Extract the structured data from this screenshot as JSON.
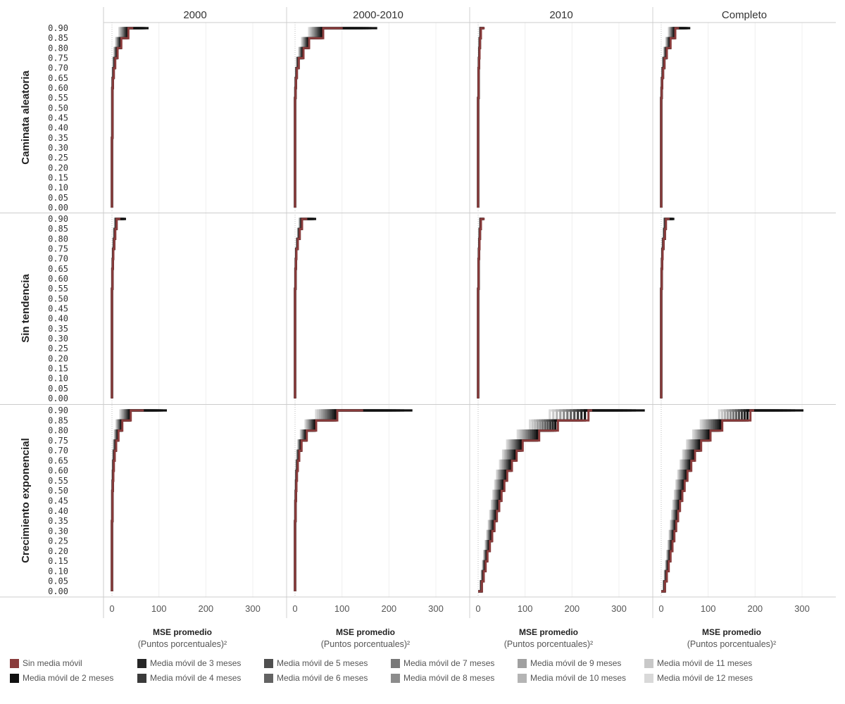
{
  "chart_data": {
    "type": "line",
    "columns": [
      "2000",
      "2000-2010",
      "2010",
      "Completo"
    ],
    "rows": [
      "Caminata aleatoria",
      "Sin tendencia",
      "Crecimiento exponencial"
    ],
    "y_ticks": [
      "0.00",
      "0.05",
      "0.10",
      "0.15",
      "0.20",
      "0.25",
      "0.30",
      "0.35",
      "0.40",
      "0.45",
      "0.50",
      "0.55",
      "0.60",
      "0.65",
      "0.70",
      "0.75",
      "0.80",
      "0.85",
      "0.90"
    ],
    "ylim": [
      0,
      0.9
    ],
    "x_ticks": [
      "0",
      "100",
      "200",
      "300"
    ],
    "xlim": [
      -18,
      372
    ],
    "xlabel": "MSE promedio",
    "xlabel_sub": "(Puntos porcentuales)²",
    "grid": true,
    "legend_position": "bottom",
    "series": [
      {
        "name": "Sin media móvil",
        "color": "#8a3c3c"
      },
      {
        "name": "Media móvil de 2 meses",
        "color": "#111111"
      },
      {
        "name": "Media móvil de 3 meses",
        "color": "#262626"
      },
      {
        "name": "Media móvil de 4 meses",
        "color": "#3a3a3a"
      },
      {
        "name": "Media móvil de 5 meses",
        "color": "#4f4f4f"
      },
      {
        "name": "Media móvil de 6 meses",
        "color": "#636363"
      },
      {
        "name": "Media móvil de 7 meses",
        "color": "#787878"
      },
      {
        "name": "Media móvil de 8 meses",
        "color": "#8c8c8c"
      },
      {
        "name": "Media móvil de 9 meses",
        "color": "#a0a0a0"
      },
      {
        "name": "Media móvil de 10 meses",
        "color": "#b4b4b4"
      },
      {
        "name": "Media móvil de 11 meses",
        "color": "#c8c8c8"
      },
      {
        "name": "Media móvil de 12 meses",
        "color": "#d9d9d9"
      }
    ],
    "levels": [
      0.0,
      0.05,
      0.1,
      0.15,
      0.2,
      0.25,
      0.3,
      0.35,
      0.4,
      0.45,
      0.5,
      0.55,
      0.6,
      0.65,
      0.7,
      0.75,
      0.8,
      0.85,
      0.9
    ],
    "panels": [
      {
        "row": "Caminata aleatoria",
        "col": "2000",
        "sin_media": [
          0,
          0,
          0,
          0,
          0,
          0,
          0,
          0,
          1,
          1,
          1,
          1,
          1,
          2,
          4,
          7,
          12,
          20,
          35
        ],
        "final_max": 78,
        "spread": 0.55
      },
      {
        "row": "Caminata aleatoria",
        "col": "2000-2010",
        "sin_media": [
          0,
          0,
          0,
          0,
          0,
          0,
          0,
          0,
          0,
          0,
          0,
          0,
          1,
          2,
          4,
          8,
          18,
          30,
          60
        ],
        "final_max": 175,
        "spread": 0.5
      },
      {
        "row": "Caminata aleatoria",
        "col": "2010",
        "sin_media": [
          0,
          0,
          0,
          0,
          0,
          0,
          0,
          0,
          0,
          0,
          0,
          0,
          1,
          1,
          1,
          2,
          3,
          4,
          6
        ],
        "final_max": 12,
        "spread": 0.3
      },
      {
        "row": "Caminata aleatoria",
        "col": "Completo",
        "sin_media": [
          0,
          0,
          0,
          0,
          0,
          0,
          0,
          0,
          0,
          0,
          0,
          0,
          1,
          2,
          4,
          7,
          12,
          20,
          30
        ],
        "final_max": 62,
        "spread": 0.45
      },
      {
        "row": "Sin tendencia",
        "col": "2000",
        "sin_media": [
          0,
          0,
          0,
          0,
          0,
          0,
          0,
          0,
          0,
          0,
          0,
          0,
          1,
          1,
          2,
          3,
          5,
          7,
          10
        ],
        "final_max": 30,
        "spread": 0.35
      },
      {
        "row": "Sin tendencia",
        "col": "2000-2010",
        "sin_media": [
          0,
          0,
          0,
          0,
          0,
          0,
          0,
          0,
          0,
          0,
          0,
          0,
          1,
          1,
          2,
          3,
          6,
          10,
          15
        ],
        "final_max": 45,
        "spread": 0.35
      },
      {
        "row": "Sin tendencia",
        "col": "2010",
        "sin_media": [
          0,
          0,
          0,
          0,
          0,
          0,
          0,
          0,
          0,
          0,
          0,
          0,
          1,
          1,
          1,
          2,
          3,
          4,
          6
        ],
        "final_max": 12,
        "spread": 0.3
      },
      {
        "row": "Sin tendencia",
        "col": "Completo",
        "sin_media": [
          0,
          0,
          0,
          0,
          0,
          0,
          0,
          0,
          0,
          0,
          0,
          0,
          1,
          1,
          2,
          3,
          5,
          8,
          10
        ],
        "final_max": 28,
        "spread": 0.35
      },
      {
        "row": "Crecimiento exponencial",
        "col": "2000",
        "sin_media": [
          0,
          0,
          0,
          0,
          0,
          0,
          0,
          0,
          1,
          1,
          1,
          2,
          3,
          4,
          6,
          9,
          14,
          22,
          40
        ],
        "final_max": 117,
        "spread": 0.55
      },
      {
        "row": "Crecimiento exponencial",
        "col": "2000-2010",
        "sin_media": [
          0,
          0,
          0,
          0,
          0,
          0,
          0,
          0,
          1,
          1,
          2,
          3,
          4,
          6,
          9,
          14,
          25,
          45,
          90
        ],
        "final_max": 250,
        "spread": 0.5
      },
      {
        "row": "Crecimiento exponencial",
        "col": "2010",
        "sin_media": [
          0,
          8,
          12,
          16,
          20,
          25,
          30,
          35,
          40,
          45,
          50,
          56,
          62,
          72,
          82,
          95,
          130,
          170,
          235
        ],
        "final_max": 355,
        "spread": 0.35
      },
      {
        "row": "Crecimiento exponencial",
        "col": "Completo",
        "sin_media": [
          0,
          8,
          12,
          16,
          20,
          24,
          28,
          32,
          36,
          40,
          45,
          50,
          56,
          64,
          72,
          85,
          105,
          130,
          190
        ],
        "final_max": 303,
        "spread": 0.35
      }
    ]
  }
}
